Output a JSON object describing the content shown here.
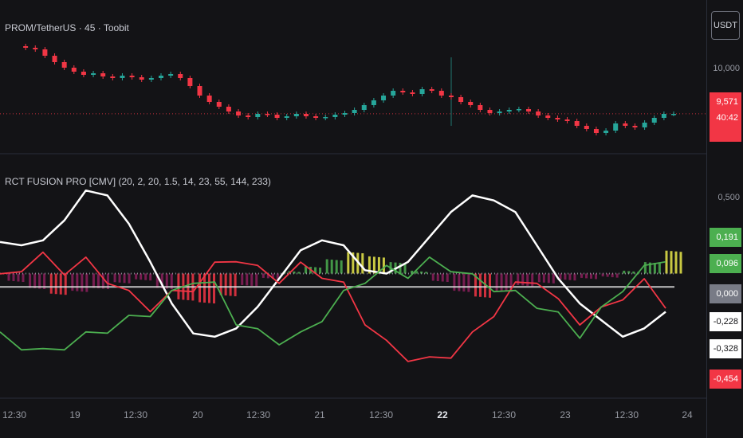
{
  "header": {
    "symbol_title": "PROM/TetherUS · 45 · Toobit",
    "currency_button": "USDT"
  },
  "indicator": {
    "title": "RCT FUSION PRO [CMV] (20, 2, 20, 1.5, 14, 23, 55, 144, 233)"
  },
  "price_axis": {
    "level_label": "10,000",
    "current_price": "9,571",
    "countdown": "40:42"
  },
  "osc_axis": {
    "tick_label": "0,500",
    "tags": [
      {
        "value": "0,191",
        "bg": "#4caf50",
        "fg": "#ffffff"
      },
      {
        "value": "0,096",
        "bg": "#4caf50",
        "fg": "#ffffff"
      },
      {
        "value": "0,000",
        "bg": "#787b86",
        "fg": "#ffffff"
      },
      {
        "value": "-0,228",
        "bg": "#ffffff",
        "fg": "#131316"
      },
      {
        "value": "-0,328",
        "bg": "#ffffff",
        "fg": "#131316"
      },
      {
        "value": "-0,454",
        "bg": "#f23645",
        "fg": "#ffffff"
      }
    ]
  },
  "time_axis": [
    {
      "label": "12:30",
      "bold": false
    },
    {
      "label": "19",
      "bold": false
    },
    {
      "label": "12:30",
      "bold": false
    },
    {
      "label": "20",
      "bold": false
    },
    {
      "label": "12:30",
      "bold": false
    },
    {
      "label": "21",
      "bold": false
    },
    {
      "label": "12:30",
      "bold": false
    },
    {
      "label": "22",
      "bold": true
    },
    {
      "label": "12:30",
      "bold": false
    },
    {
      "label": "23",
      "bold": false
    },
    {
      "label": "12:30",
      "bold": false
    },
    {
      "label": "24",
      "bold": false
    }
  ],
  "colors": {
    "up": "#26a69a",
    "down": "#f23645",
    "green": "#4caf50",
    "yellow": "#e8e84a",
    "white": "#ffffff",
    "magenta": "#8a1f5c"
  },
  "chart_data": [
    {
      "type": "candlestick",
      "title": "PROM/TetherUS · 45 · Toobit",
      "price_close_path": [
        10.42,
        10.4,
        10.38,
        10.3,
        10.22,
        10.15,
        10.1,
        10.06,
        10.08,
        10.04,
        10.02,
        10.05,
        10.03,
        10.0,
        10.02,
        10.05,
        10.07,
        10.02,
        9.92,
        9.8,
        9.72,
        9.66,
        9.6,
        9.55,
        9.53,
        9.57,
        9.56,
        9.52,
        9.54,
        9.57,
        9.54,
        9.52,
        9.53,
        9.56,
        9.58,
        9.62,
        9.68,
        9.74,
        9.8,
        9.86,
        9.84,
        9.82,
        9.88,
        9.86,
        9.8,
        9.78,
        9.72,
        9.68,
        9.62,
        9.58,
        9.6,
        9.62,
        9.63,
        9.6,
        9.55,
        9.52,
        9.5,
        9.48,
        9.42,
        9.38,
        9.33,
        9.36,
        9.45,
        9.42,
        9.4,
        9.46,
        9.52,
        9.57,
        9.57
      ],
      "ylabel_ticks": [
        "10,000"
      ],
      "last_price": 9.571
    },
    {
      "type": "line",
      "title": "RCT FUSION PRO [CMV] (20, 2, 20, 1.5, 14, 23, 55, 144, 233)",
      "series": [
        {
          "name": "",
          "color": "white",
          "values": [
            0.27,
            0.25,
            0.28,
            0.4,
            0.58,
            0.55,
            0.38,
            0.15,
            -0.1,
            -0.28,
            -0.3,
            -0.25,
            -0.12,
            0.05,
            0.22,
            0.28,
            0.25,
            0.1,
            0.08,
            0.15,
            0.3,
            0.45,
            0.55,
            0.52,
            0.45,
            0.25,
            0.05,
            -0.1,
            -0.2,
            -0.3,
            -0.25,
            -0.15
          ]
        },
        {
          "name": "",
          "color": "red",
          "values": [
            0.05,
            0.12,
            0.18,
            0.1,
            0.15,
            0.05,
            -0.05,
            -0.12,
            -0.05,
            0.0,
            0.12,
            0.18,
            0.1,
            0.05,
            0.12,
            0.08,
            0.0,
            -0.2,
            -0.35,
            -0.42,
            -0.45,
            -0.4,
            -0.3,
            -0.15,
            0.0,
            0.05,
            -0.1,
            -0.2,
            -0.15,
            -0.05,
            0.02,
            -0.1
          ]
        },
        {
          "name": "",
          "color": "green",
          "values": [
            -0.3,
            -0.35,
            -0.4,
            -0.35,
            -0.3,
            -0.25,
            -0.2,
            -0.15,
            -0.05,
            0.05,
            0.0,
            -0.2,
            -0.28,
            -0.32,
            -0.3,
            -0.18,
            -0.05,
            0.05,
            0.1,
            0.08,
            0.15,
            0.12,
            0.05,
            0.0,
            -0.05,
            -0.1,
            -0.18,
            -0.28,
            -0.15,
            0.0,
            0.1,
            0.18
          ]
        }
      ],
      "histogram": [
        -0.05,
        -0.1,
        -0.14,
        -0.12,
        -0.1,
        -0.06,
        -0.04,
        -0.1,
        -0.18,
        -0.2,
        -0.15,
        -0.08,
        -0.03,
        0.02,
        0.05,
        0.1,
        0.15,
        0.12,
        0.08,
        0.02,
        -0.05,
        -0.12,
        -0.16,
        -0.12,
        -0.08,
        -0.06,
        -0.04,
        -0.03,
        -0.02,
        0.02,
        0.08,
        0.16
      ],
      "zero_line": 0.0,
      "ylim": [
        -0.55,
        0.6
      ]
    }
  ]
}
